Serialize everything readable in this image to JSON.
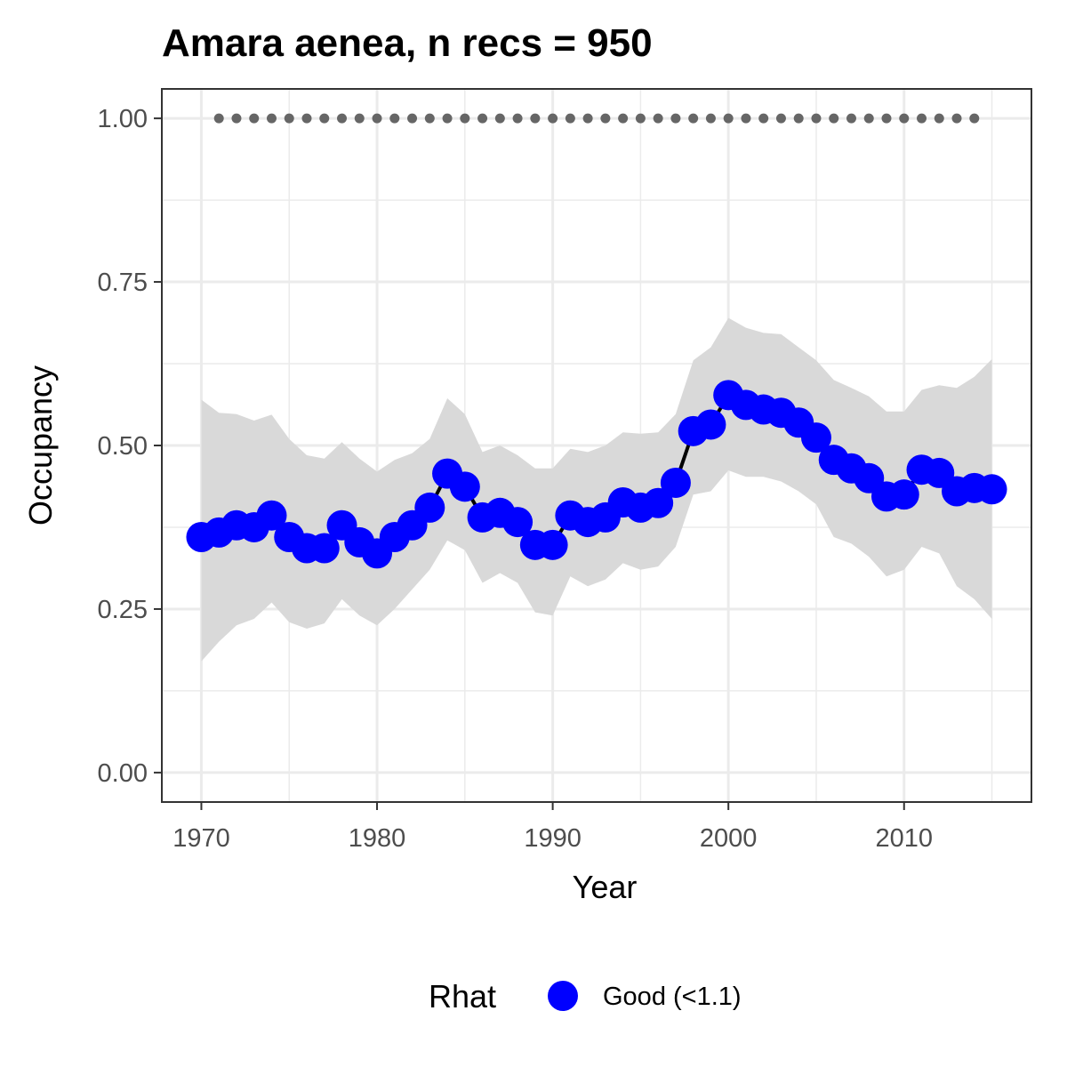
{
  "chart_data": {
    "type": "line",
    "title": "Amara aenea, n recs = 950",
    "xlabel": "Year",
    "ylabel": "Occupancy",
    "xlim": [
      1967.75,
      2017.25
    ],
    "ylim": [
      -0.045,
      1.045
    ],
    "x_ticks": [
      1970,
      1980,
      1990,
      2000,
      2010
    ],
    "x_tick_labels": [
      "1970",
      "1980",
      "1990",
      "2000",
      "2010"
    ],
    "y_ticks": [
      0,
      0.25,
      0.5,
      0.75,
      1.0
    ],
    "y_tick_labels": [
      "0.00",
      "0.25",
      "0.50",
      "0.75",
      "1.00"
    ],
    "grid": true,
    "legend_position": "bottom",
    "legend": {
      "title": "Rhat",
      "entries": [
        {
          "label": "Good (<1.1)",
          "color": "#0000ff"
        }
      ]
    },
    "colors": {
      "points": "#0000ff",
      "line": "#000000",
      "ribbon": "#d9d9d9",
      "rug": "#666666",
      "grid": "#ebebeb"
    },
    "years": [
      1970,
      1971,
      1972,
      1973,
      1974,
      1975,
      1976,
      1977,
      1978,
      1979,
      1980,
      1981,
      1982,
      1983,
      1984,
      1985,
      1986,
      1987,
      1988,
      1989,
      1990,
      1991,
      1992,
      1993,
      1994,
      1995,
      1996,
      1997,
      1998,
      1999,
      2000,
      2001,
      2002,
      2003,
      2004,
      2005,
      2006,
      2007,
      2008,
      2009,
      2010,
      2011,
      2012,
      2013,
      2014,
      2015
    ],
    "series": [
      {
        "name": "Occupancy",
        "values": [
          0.36,
          0.367,
          0.378,
          0.375,
          0.393,
          0.36,
          0.343,
          0.343,
          0.378,
          0.352,
          0.335,
          0.36,
          0.378,
          0.405,
          0.457,
          0.437,
          0.39,
          0.397,
          0.383,
          0.348,
          0.348,
          0.393,
          0.383,
          0.39,
          0.413,
          0.405,
          0.412,
          0.443,
          0.522,
          0.532,
          0.577,
          0.562,
          0.555,
          0.55,
          0.535,
          0.512,
          0.478,
          0.465,
          0.45,
          0.422,
          0.425,
          0.463,
          0.458,
          0.43,
          0.435,
          0.433
        ],
        "lower": [
          0.17,
          0.2,
          0.225,
          0.235,
          0.26,
          0.23,
          0.22,
          0.228,
          0.265,
          0.24,
          0.225,
          0.25,
          0.28,
          0.31,
          0.355,
          0.34,
          0.29,
          0.305,
          0.29,
          0.245,
          0.24,
          0.3,
          0.285,
          0.295,
          0.32,
          0.31,
          0.315,
          0.345,
          0.425,
          0.43,
          0.462,
          0.452,
          0.452,
          0.445,
          0.43,
          0.41,
          0.36,
          0.35,
          0.33,
          0.3,
          0.31,
          0.345,
          0.335,
          0.285,
          0.265,
          0.235
        ],
        "upper": [
          0.57,
          0.55,
          0.548,
          0.538,
          0.547,
          0.51,
          0.485,
          0.48,
          0.505,
          0.48,
          0.46,
          0.478,
          0.488,
          0.51,
          0.572,
          0.548,
          0.49,
          0.5,
          0.485,
          0.465,
          0.465,
          0.495,
          0.49,
          0.5,
          0.52,
          0.518,
          0.52,
          0.548,
          0.63,
          0.65,
          0.695,
          0.68,
          0.672,
          0.67,
          0.65,
          0.63,
          0.6,
          0.588,
          0.575,
          0.552,
          0.552,
          0.585,
          0.592,
          0.588,
          0.605,
          0.632
        ]
      }
    ],
    "rug": {
      "y": 1.0,
      "x": [
        1971,
        1972,
        1973,
        1974,
        1975,
        1976,
        1977,
        1978,
        1979,
        1980,
        1981,
        1982,
        1983,
        1984,
        1985,
        1986,
        1987,
        1988,
        1989,
        1990,
        1991,
        1992,
        1993,
        1994,
        1995,
        1996,
        1997,
        1998,
        1999,
        2000,
        2001,
        2002,
        2003,
        2004,
        2005,
        2006,
        2007,
        2008,
        2009,
        2010,
        2011,
        2012,
        2013,
        2014
      ]
    }
  }
}
